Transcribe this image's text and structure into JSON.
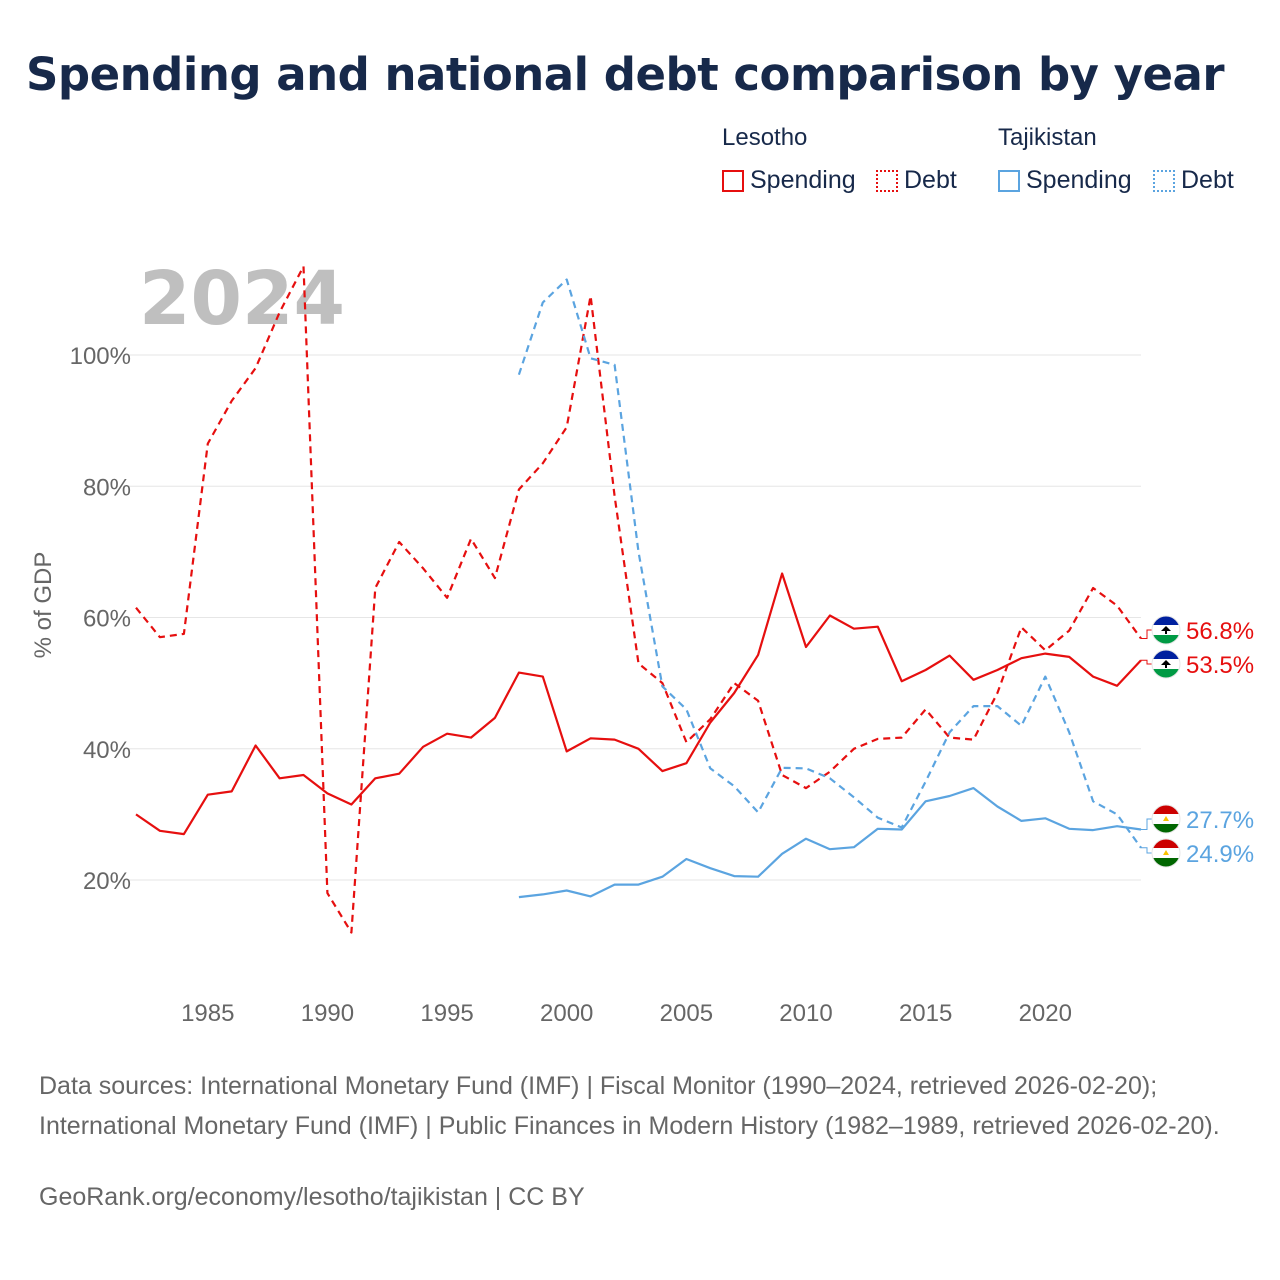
{
  "title": "Spending and national debt comparison by year",
  "legend": {
    "groups": [
      {
        "country": "Lesotho",
        "color": "#e60f0f",
        "items": [
          {
            "label": "Spending",
            "style": "solid"
          },
          {
            "label": "Debt",
            "style": "dotted"
          }
        ]
      },
      {
        "country": "Tajikistan",
        "color": "#5ba4e0",
        "items": [
          {
            "label": "Spending",
            "style": "solid"
          },
          {
            "label": "Debt",
            "style": "dotted"
          }
        ]
      }
    ]
  },
  "chart_data": {
    "type": "line",
    "year_watermark": "2024",
    "ylabel": "% of GDP",
    "xlim": [
      1982,
      2024
    ],
    "ylim": [
      7,
      113
    ],
    "y_ticks": [
      20,
      40,
      60,
      80,
      100
    ],
    "y_tick_labels": [
      "20%",
      "40%",
      "60%",
      "80%",
      "100%"
    ],
    "x_ticks": [
      1985,
      1990,
      1995,
      2000,
      2005,
      2010,
      2015,
      2020
    ],
    "x_tick_labels": [
      "1985",
      "1990",
      "1995",
      "2000",
      "2005",
      "2010",
      "2015",
      "2020"
    ],
    "grid": "horizontal",
    "series": [
      {
        "name": "Lesotho Spending",
        "country": "Lesotho",
        "color": "#e60f0f",
        "dash": "solid",
        "start": 1982,
        "values": [
          30.0,
          27.5,
          27.0,
          33.0,
          33.5,
          40.5,
          35.5,
          36.0,
          33.2,
          31.5,
          35.5,
          36.2,
          40.3,
          42.3,
          41.7,
          44.7,
          51.6,
          51.0,
          39.6,
          41.6,
          41.4,
          40.0,
          36.6,
          37.8,
          44.0,
          48.5,
          54.3,
          66.7,
          55.5,
          60.3,
          58.3,
          58.6,
          50.3,
          52.0,
          54.2,
          50.5,
          52.0,
          53.8,
          54.5,
          54.0,
          51.0,
          49.6,
          53.5
        ]
      },
      {
        "name": "Lesotho Debt",
        "country": "Lesotho",
        "color": "#e60f0f",
        "dash": "dashed",
        "start": 1982,
        "values": [
          61.5,
          57.0,
          57.5,
          86.5,
          93.0,
          98.0,
          106.5,
          113.5,
          18.0,
          12.0,
          64.5,
          71.5,
          67.5,
          63.0,
          72.0,
          66.0,
          79.5,
          83.5,
          89.0,
          109.0,
          78.5,
          53.0,
          50.0,
          41.0,
          44.5,
          50.0,
          47.3,
          36.0,
          34.0,
          36.5,
          40.0,
          41.5,
          41.7,
          46.0,
          41.7,
          41.4,
          48.5,
          58.5,
          55.0,
          58.0,
          64.5,
          61.8,
          56.8
        ]
      },
      {
        "name": "Tajikistan Spending",
        "country": "Tajikistan",
        "color": "#5ba4e0",
        "dash": "solid",
        "start": 1998,
        "values": [
          17.4,
          17.8,
          18.4,
          17.5,
          19.3,
          19.3,
          20.5,
          23.2,
          21.8,
          20.6,
          20.5,
          24.0,
          26.3,
          24.7,
          25.0,
          27.8,
          27.7,
          32.0,
          32.8,
          34.0,
          31.2,
          29.0,
          29.4,
          27.8,
          27.6,
          28.2,
          27.7
        ]
      },
      {
        "name": "Tajikistan Debt",
        "country": "Tajikistan",
        "color": "#5ba4e0",
        "dash": "dashed",
        "start": 1998,
        "values": [
          97.0,
          108.0,
          111.5,
          99.5,
          98.5,
          70.0,
          49.5,
          46.0,
          37.0,
          34.3,
          30.3,
          37.1,
          37.0,
          35.5,
          32.6,
          29.5,
          28.0,
          35.0,
          42.5,
          46.5,
          46.5,
          43.5,
          51.0,
          42.5,
          32.0,
          30.0,
          24.9
        ]
      }
    ],
    "end_labels": [
      {
        "country": "Lesotho",
        "text": "56.8%",
        "value": 56.8,
        "color": "#e60f0f",
        "flag": "lesotho"
      },
      {
        "country": "Lesotho",
        "text": "53.5%",
        "value": 53.5,
        "color": "#e60f0f",
        "flag": "lesotho"
      },
      {
        "country": "Tajikistan",
        "text": "27.7%",
        "value": 27.7,
        "color": "#5ba4e0",
        "flag": "tajikistan"
      },
      {
        "country": "Tajikistan",
        "text": "24.9%",
        "value": 24.9,
        "color": "#5ba4e0",
        "flag": "tajikistan"
      }
    ]
  },
  "footer": {
    "source": "Data sources: International Monetary Fund (IMF) | Fiscal Monitor (1990–2024, retrieved 2026-02-20); International Monetary Fund (IMF) | Public Finances in Modern History (1982–1989, retrieved 2026-02-20).",
    "credit": "GeoRank.org/economy/lesotho/tajikistan | CC BY"
  },
  "colors": {
    "lesotho": "#e60f0f",
    "tajikistan": "#5ba4e0",
    "title": "#17294a",
    "grid": "#e6e6e6",
    "axis_text": "#666666",
    "watermark": "#bfbfbf"
  }
}
